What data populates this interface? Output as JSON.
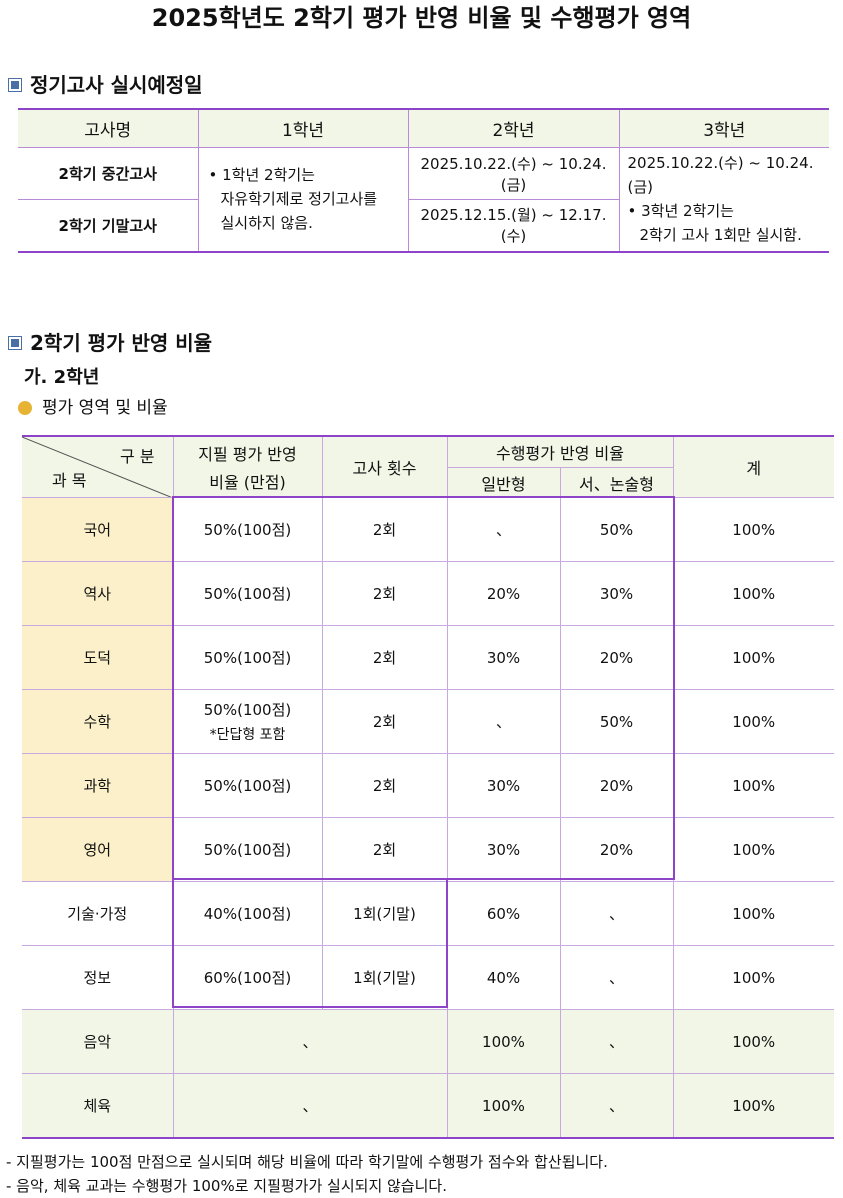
{
  "title": "2025학년도 2학기 평가 반영 비율 및 수행평가 영역",
  "section1": {
    "heading": "정기고사 실시예정일"
  },
  "schedule": {
    "headers": [
      "고사명",
      "1학년",
      "2학년",
      "3학년"
    ],
    "rows": [
      {
        "name": "2학기 중간고사",
        "g2": "2025.10.22.(수) ~ 10.24.(금)",
        "g3": "2025.10.22.(수) ~ 10.24.(금)"
      },
      {
        "name": "2학기 기말고사",
        "g2": "2025.12.15.(월) ~ 12.17.(수)"
      }
    ],
    "g1_note_line1": "• 1학년 2학기는",
    "g1_note_line2": "자유학기제로 정기고사를",
    "g1_note_line3": "실시하지 않음.",
    "g3_note_line1": "• 3학년 2학기는",
    "g3_note_line2": "2학기 고사 1회만 실시함."
  },
  "section2": {
    "heading": "2학기 평가 반영 비율",
    "sub": "가. 2학년",
    "bullet": "평가 영역 및 비율"
  },
  "ratio": {
    "header": {
      "gubun": "구 분",
      "gwamok": "과 목",
      "written_line1": "지필 평가 반영",
      "written_line2": "비율 (만점)",
      "exam_count": "고사 횟수",
      "perf": "수행평가 반영 비율",
      "perf_general": "일반형",
      "perf_essay": "서、논술형",
      "total": "계"
    },
    "rows": [
      {
        "subject": "국어",
        "written": "50%(100점)",
        "count": "2회",
        "general": "、",
        "essay": "50%",
        "total": "100%"
      },
      {
        "subject": "역사",
        "written": "50%(100점)",
        "count": "2회",
        "general": "20%",
        "essay": "30%",
        "total": "100%"
      },
      {
        "subject": "도덕",
        "written": "50%(100점)",
        "count": "2회",
        "general": "30%",
        "essay": "20%",
        "total": "100%"
      },
      {
        "subject": "수학",
        "written": "50%(100점)",
        "written_note": "*단답형 포함",
        "count": "2회",
        "general": "、",
        "essay": "50%",
        "total": "100%"
      },
      {
        "subject": "과학",
        "written": "50%(100점)",
        "count": "2회",
        "general": "30%",
        "essay": "20%",
        "total": "100%"
      },
      {
        "subject": "영어",
        "written": "50%(100점)",
        "count": "2회",
        "general": "30%",
        "essay": "20%",
        "total": "100%"
      },
      {
        "subject": "기술·가정",
        "written": "40%(100점)",
        "count": "1회(기말)",
        "general": "60%",
        "essay": "、",
        "total": "100%"
      },
      {
        "subject": "정보",
        "written": "60%(100점)",
        "count": "1회(기말)",
        "general": "40%",
        "essay": "、",
        "total": "100%"
      },
      {
        "subject": "음악",
        "written": "、",
        "general": "100%",
        "essay": "、",
        "total": "100%"
      },
      {
        "subject": "체육",
        "written": "、",
        "general": "100%",
        "essay": "、",
        "total": "100%"
      }
    ]
  },
  "notes": [
    "- 지필평가는 100점 만점으로 실시되며 해당 비율에 따라 학기말에 수행평가 점수와 합산됩니다.",
    "- 음악, 체육 교과는 수행평가 100%로 지필평가가 실시되지 않습니다."
  ]
}
